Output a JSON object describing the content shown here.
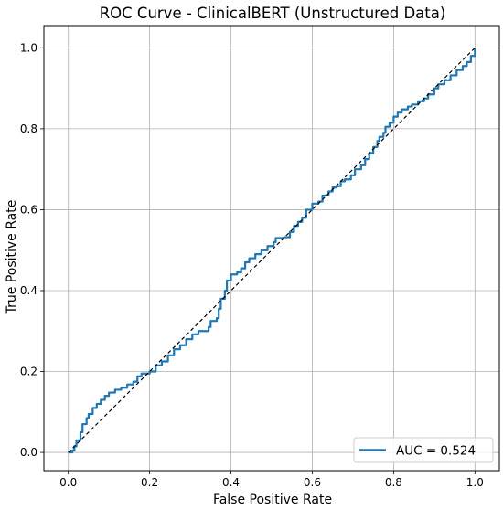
{
  "chart_data": {
    "type": "line",
    "title": "ROC Curve - ClinicalBERT (Unstructured Data)",
    "xlabel": "False Positive Rate",
    "ylabel": "True Positive Rate",
    "xlim": [
      -0.06,
      1.06
    ],
    "ylim": [
      -0.045,
      1.055
    ],
    "xticks": [
      "0.0",
      "0.2",
      "0.4",
      "0.6",
      "0.8",
      "1.0"
    ],
    "yticks": [
      "0.0",
      "0.2",
      "0.4",
      "0.6",
      "0.8",
      "1.0"
    ],
    "grid": true,
    "legend_position": "lower-right",
    "series": [
      {
        "name": "AUC = 0.524",
        "color": "#1f77b4",
        "style": "solid-step",
        "points": [
          [
            0.0,
            0.0
          ],
          [
            0.01,
            0.005
          ],
          [
            0.015,
            0.015
          ],
          [
            0.02,
            0.03
          ],
          [
            0.03,
            0.05
          ],
          [
            0.035,
            0.07
          ],
          [
            0.045,
            0.085
          ],
          [
            0.05,
            0.095
          ],
          [
            0.06,
            0.11
          ],
          [
            0.07,
            0.12
          ],
          [
            0.08,
            0.13
          ],
          [
            0.09,
            0.14
          ],
          [
            0.1,
            0.148
          ],
          [
            0.115,
            0.155
          ],
          [
            0.13,
            0.16
          ],
          [
            0.145,
            0.168
          ],
          [
            0.16,
            0.175
          ],
          [
            0.17,
            0.188
          ],
          [
            0.18,
            0.195
          ],
          [
            0.2,
            0.2
          ],
          [
            0.215,
            0.215
          ],
          [
            0.23,
            0.225
          ],
          [
            0.245,
            0.24
          ],
          [
            0.26,
            0.255
          ],
          [
            0.275,
            0.265
          ],
          [
            0.29,
            0.28
          ],
          [
            0.305,
            0.292
          ],
          [
            0.32,
            0.3
          ],
          [
            0.33,
            0.3
          ],
          [
            0.345,
            0.31
          ],
          [
            0.35,
            0.325
          ],
          [
            0.365,
            0.332
          ],
          [
            0.37,
            0.355
          ],
          [
            0.375,
            0.38
          ],
          [
            0.385,
            0.4
          ],
          [
            0.39,
            0.425
          ],
          [
            0.4,
            0.44
          ],
          [
            0.415,
            0.445
          ],
          [
            0.425,
            0.455
          ],
          [
            0.435,
            0.47
          ],
          [
            0.445,
            0.48
          ],
          [
            0.46,
            0.49
          ],
          [
            0.475,
            0.5
          ],
          [
            0.49,
            0.51
          ],
          [
            0.505,
            0.52
          ],
          [
            0.51,
            0.53
          ],
          [
            0.53,
            0.532
          ],
          [
            0.545,
            0.545
          ],
          [
            0.555,
            0.56
          ],
          [
            0.565,
            0.57
          ],
          [
            0.575,
            0.58
          ],
          [
            0.585,
            0.6
          ],
          [
            0.6,
            0.615
          ],
          [
            0.615,
            0.62
          ],
          [
            0.625,
            0.635
          ],
          [
            0.64,
            0.645
          ],
          [
            0.65,
            0.655
          ],
          [
            0.66,
            0.658
          ],
          [
            0.67,
            0.67
          ],
          [
            0.68,
            0.675
          ],
          [
            0.695,
            0.685
          ],
          [
            0.705,
            0.7
          ],
          [
            0.72,
            0.71
          ],
          [
            0.73,
            0.725
          ],
          [
            0.74,
            0.74
          ],
          [
            0.75,
            0.755
          ],
          [
            0.76,
            0.77
          ],
          [
            0.765,
            0.78
          ],
          [
            0.775,
            0.79
          ],
          [
            0.78,
            0.805
          ],
          [
            0.79,
            0.815
          ],
          [
            0.8,
            0.83
          ],
          [
            0.81,
            0.84
          ],
          [
            0.82,
            0.848
          ],
          [
            0.835,
            0.855
          ],
          [
            0.845,
            0.86
          ],
          [
            0.86,
            0.868
          ],
          [
            0.875,
            0.875
          ],
          [
            0.885,
            0.885
          ],
          [
            0.9,
            0.9
          ],
          [
            0.91,
            0.91
          ],
          [
            0.925,
            0.92
          ],
          [
            0.94,
            0.932
          ],
          [
            0.955,
            0.945
          ],
          [
            0.97,
            0.955
          ],
          [
            0.98,
            0.965
          ],
          [
            0.99,
            0.98
          ],
          [
            1.0,
            1.0
          ]
        ]
      },
      {
        "name": "",
        "color": "#000000",
        "style": "dashed",
        "points": [
          [
            0.0,
            0.0
          ],
          [
            1.0,
            1.0
          ]
        ]
      }
    ]
  }
}
